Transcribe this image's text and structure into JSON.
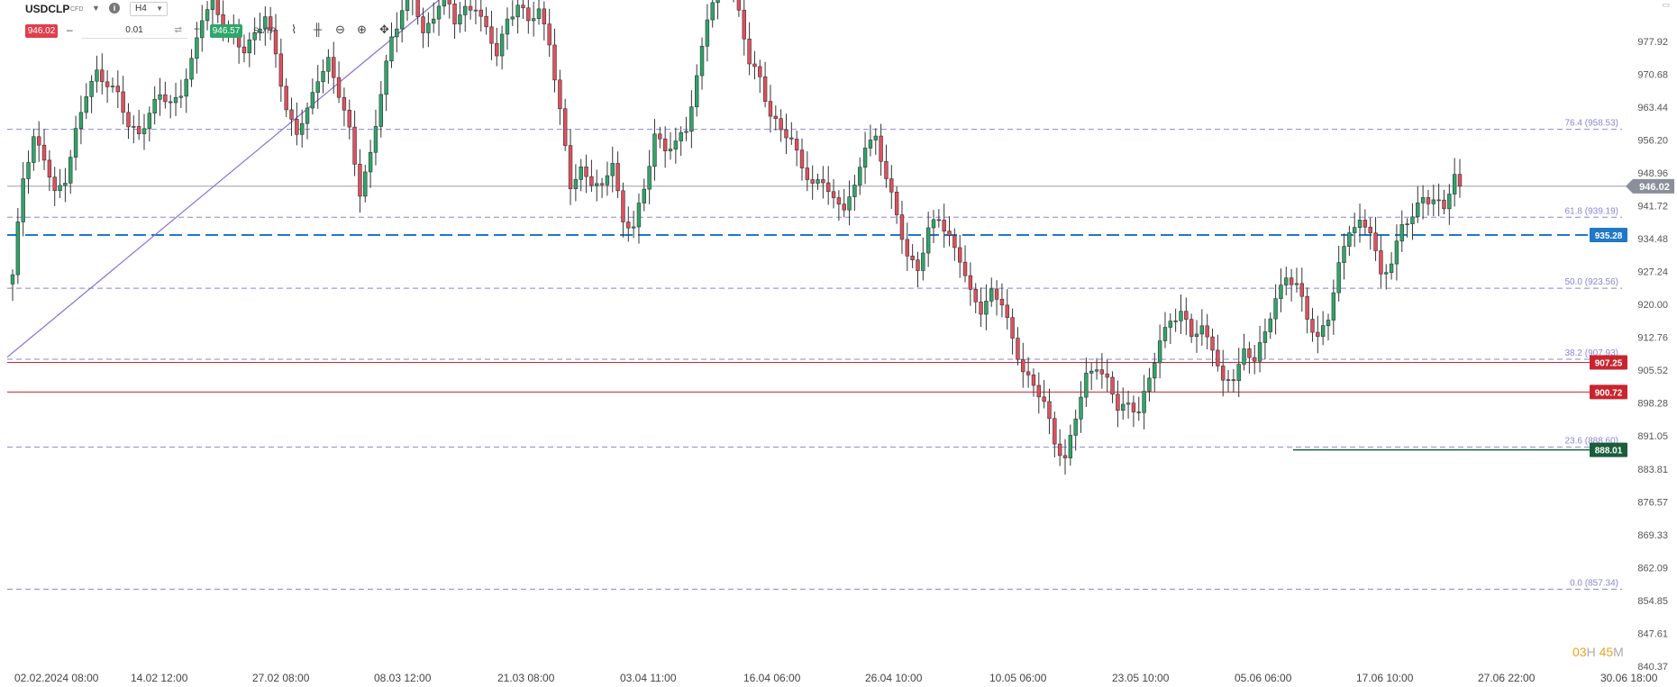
{
  "header": {
    "symbol": "USDCLP",
    "instrument_type": "CFD",
    "timeframe": "H4",
    "info_icon": "info-icon",
    "sell_price": "946.02",
    "buy_price": "946.57",
    "quantity": "0.01",
    "minus_label": "–",
    "plus_label": "+",
    "sltp_label": "SL/TP",
    "tools": [
      "line-chart-icon",
      "candles-icon",
      "zoom-out-icon",
      "zoom-in-icon",
      "crosshair-icon"
    ]
  },
  "colors": {
    "bull": "#2fa66a",
    "bear": "#e0505d",
    "sell": "#e03e4b",
    "buy": "#2fa66a",
    "fib": "#8b84d6",
    "trend": "#8b6fd6",
    "level_blue": "#1f78c8",
    "level_red": "#c9252e",
    "level_green": "#1b5e3b",
    "last": "#8a8f99"
  },
  "clock": {
    "hours": "03",
    "h_unit": "H",
    "minutes": "45",
    "m_unit": "M"
  },
  "chart_data": {
    "type": "candlestick",
    "symbol": "USDCLP",
    "timeframe": "H4",
    "ylim": [
      840.37,
      987.0
    ],
    "y_ticks": [
      "977.92",
      "970.68",
      "963.44",
      "956.20",
      "948.96",
      "941.72",
      "934.48",
      "927.24",
      "920.00",
      "912.76",
      "905.52",
      "898.28",
      "891.05",
      "883.81",
      "876.57",
      "869.33",
      "862.09",
      "854.85",
      "847.61",
      "840.37"
    ],
    "x_ticks": [
      "02.02.2024 08:00",
      "14.02 12:00",
      "27.02 08:00",
      "08.03 12:00",
      "21.03 08:00",
      "03.04 11:00",
      "16.04 06:00",
      "26.04 10:00",
      "10.05 06:00",
      "23.05 10:00",
      "05.06 06:00",
      "17.06 10:00",
      "27.06 22:00",
      "30.06 18:00"
    ],
    "last_price": 946.02,
    "last_label": "946.02",
    "fib_levels": [
      {
        "label": "76.4 (958.53)",
        "value": 958.53
      },
      {
        "label": "61.8 (939.19)",
        "value": 939.19
      },
      {
        "label": "50.0 (923.56)",
        "value": 923.56
      },
      {
        "label": "38.2 (907.93)",
        "value": 907.93
      },
      {
        "label": "23.6 (888.60)",
        "value": 888.6
      },
      {
        "label": "0.0 (857.34)",
        "value": 857.34
      }
    ],
    "levels": [
      {
        "label": "935.28",
        "value": 935.28,
        "color": "blue"
      },
      {
        "label": "907.25",
        "value": 907.25,
        "color": "red"
      },
      {
        "label": "900.72",
        "value": 900.72,
        "color": "red"
      },
      {
        "label": "888.01",
        "value": 888.01,
        "color": "green"
      }
    ],
    "trendline": {
      "from": {
        "candle": 0,
        "price": 908.4
      },
      "to": {
        "candle": 81,
        "price": 987.0
      }
    },
    "waypoints": [
      [
        0,
        926
      ],
      [
        2,
        948
      ],
      [
        4,
        957
      ],
      [
        6,
        952
      ],
      [
        8,
        944
      ],
      [
        10,
        948
      ],
      [
        12,
        958
      ],
      [
        14,
        966
      ],
      [
        16,
        971
      ],
      [
        18,
        969
      ],
      [
        20,
        966
      ],
      [
        22,
        959
      ],
      [
        24,
        958
      ],
      [
        26,
        962
      ],
      [
        28,
        966
      ],
      [
        30,
        964
      ],
      [
        32,
        967
      ],
      [
        34,
        973
      ],
      [
        36,
        983
      ],
      [
        38,
        987
      ],
      [
        40,
        982
      ],
      [
        42,
        978
      ],
      [
        44,
        976
      ],
      [
        46,
        980
      ],
      [
        48,
        983
      ],
      [
        50,
        975
      ],
      [
        52,
        963
      ],
      [
        54,
        958
      ],
      [
        56,
        962
      ],
      [
        58,
        970
      ],
      [
        60,
        974
      ],
      [
        62,
        966
      ],
      [
        64,
        958
      ],
      [
        66,
        945
      ],
      [
        68,
        953
      ],
      [
        70,
        966
      ],
      [
        72,
        979
      ],
      [
        74,
        985
      ],
      [
        76,
        988
      ],
      [
        78,
        979
      ],
      [
        80,
        984
      ],
      [
        82,
        989
      ],
      [
        84,
        982
      ],
      [
        86,
        985
      ],
      [
        88,
        986
      ],
      [
        90,
        980
      ],
      [
        92,
        975
      ],
      [
        94,
        983
      ],
      [
        96,
        986
      ],
      [
        98,
        982
      ],
      [
        100,
        985
      ],
      [
        102,
        978
      ],
      [
        104,
        962
      ],
      [
        106,
        946
      ],
      [
        108,
        950
      ],
      [
        110,
        947
      ],
      [
        112,
        945
      ],
      [
        114,
        952
      ],
      [
        116,
        938
      ],
      [
        118,
        937
      ],
      [
        120,
        945
      ],
      [
        122,
        958
      ],
      [
        124,
        954
      ],
      [
        126,
        955
      ],
      [
        128,
        959
      ],
      [
        130,
        970
      ],
      [
        132,
        983
      ],
      [
        134,
        989
      ],
      [
        136,
        996
      ],
      [
        138,
        984
      ],
      [
        140,
        973
      ],
      [
        142,
        970
      ],
      [
        144,
        962
      ],
      [
        146,
        958
      ],
      [
        148,
        956
      ],
      [
        150,
        951
      ],
      [
        152,
        946
      ],
      [
        154,
        947
      ],
      [
        156,
        943
      ],
      [
        158,
        942
      ],
      [
        160,
        945
      ],
      [
        162,
        955
      ],
      [
        164,
        957
      ],
      [
        166,
        948
      ],
      [
        168,
        939
      ],
      [
        170,
        931
      ],
      [
        172,
        928
      ],
      [
        174,
        936
      ],
      [
        176,
        939
      ],
      [
        178,
        935
      ],
      [
        180,
        930
      ],
      [
        182,
        922
      ],
      [
        184,
        919
      ],
      [
        186,
        923
      ],
      [
        188,
        920
      ],
      [
        190,
        912
      ],
      [
        192,
        906
      ],
      [
        194,
        902
      ],
      [
        196,
        898
      ],
      [
        198,
        890
      ],
      [
        200,
        886
      ],
      [
        202,
        895
      ],
      [
        204,
        904
      ],
      [
        206,
        907
      ],
      [
        208,
        903
      ],
      [
        210,
        897
      ],
      [
        212,
        898
      ],
      [
        214,
        897
      ],
      [
        216,
        903
      ],
      [
        218,
        912
      ],
      [
        220,
        917
      ],
      [
        222,
        918
      ],
      [
        224,
        913
      ],
      [
        226,
        915
      ],
      [
        228,
        911
      ],
      [
        230,
        902
      ],
      [
        232,
        904
      ],
      [
        234,
        910
      ],
      [
        236,
        908
      ],
      [
        238,
        913
      ],
      [
        240,
        922
      ],
      [
        242,
        926
      ],
      [
        244,
        924
      ],
      [
        246,
        917
      ],
      [
        248,
        913
      ],
      [
        250,
        917
      ],
      [
        252,
        928
      ],
      [
        254,
        937
      ],
      [
        256,
        938
      ],
      [
        258,
        936
      ],
      [
        260,
        926
      ],
      [
        262,
        930
      ],
      [
        264,
        937
      ],
      [
        266,
        939
      ],
      [
        268,
        944
      ],
      [
        270,
        943
      ],
      [
        272,
        941
      ],
      [
        274,
        948
      ],
      [
        275,
        946.02
      ]
    ]
  }
}
